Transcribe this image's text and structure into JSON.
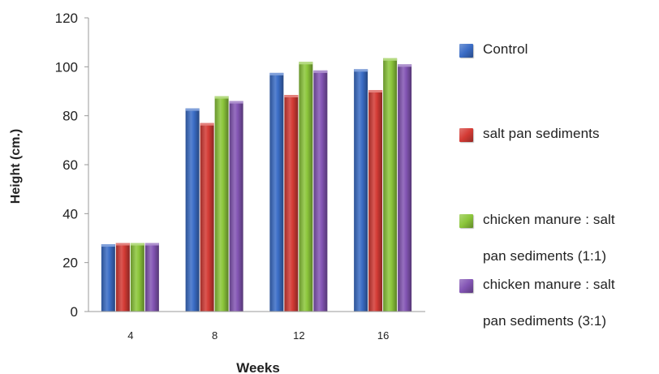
{
  "chart_data": {
    "type": "bar",
    "categories": [
      "4",
      "8",
      "12",
      "16"
    ],
    "series": [
      {
        "name": "Control",
        "values": [
          27.5,
          83,
          97.5,
          99
        ]
      },
      {
        "name": "salt pan sediments",
        "values": [
          28,
          77,
          88.5,
          90.5
        ]
      },
      {
        "name": "chicken manure : salt pan sediments (1:1)",
        "values": [
          28,
          88,
          102,
          103.5
        ]
      },
      {
        "name": "chicken manure : salt pan sediments (3:1)",
        "values": [
          28,
          86,
          98.5,
          101
        ]
      }
    ],
    "colors": [
      "#3B6DC6",
      "#D43B35",
      "#8CC63B",
      "#8355B4"
    ],
    "title": "",
    "xlabel": "Weeks",
    "ylabel": "Height (cm.)",
    "ylim": [
      0,
      120
    ],
    "yticks": [
      "0",
      "20",
      "40",
      "60",
      "80",
      "100",
      "120"
    ],
    "grid": false,
    "legend_position": "right",
    "legend_lines": [
      [
        "Control"
      ],
      [
        "salt pan sediments"
      ],
      [
        "chicken manure : salt",
        "pan sediments (1:1)"
      ],
      [
        "chicken manure : salt",
        "pan sediments (3:1)"
      ]
    ]
  }
}
